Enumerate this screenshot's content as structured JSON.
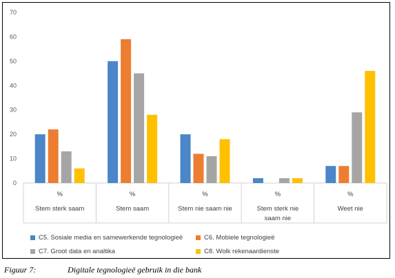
{
  "chart_data": {
    "type": "bar",
    "title": "",
    "xlabel": "",
    "ylabel": "",
    "ylim": [
      0,
      70
    ],
    "y_ticks": [
      0,
      10,
      20,
      30,
      40,
      50,
      60,
      70
    ],
    "grid": false,
    "legend_position": "bottom",
    "categories": [
      {
        "unit": "%",
        "label": "Stem sterk saam"
      },
      {
        "unit": "%",
        "label": "Stem saam"
      },
      {
        "unit": "%",
        "label": "Stem nie saam nie"
      },
      {
        "unit": "%",
        "label": "Stem sterk nie saam nie"
      },
      {
        "unit": "%",
        "label": "Weet nie"
      }
    ],
    "series": [
      {
        "name": "C5. Sosiale media en samewerkende tegnologieë",
        "color": "#4a86c8",
        "values": [
          20,
          50,
          20,
          2,
          7
        ]
      },
      {
        "name": "C6. Mobiele tegnologieë",
        "color": "#ed7d31",
        "values": [
          22,
          59,
          12,
          0,
          7
        ]
      },
      {
        "name": "C7. Groot data en analtika",
        "color": "#a5a5a5",
        "values": [
          13,
          45,
          11,
          2,
          29
        ]
      },
      {
        "name": "C8. Wolk rekenaardienste",
        "color": "#ffc000",
        "values": [
          6,
          28,
          18,
          2,
          46
        ]
      }
    ]
  },
  "caption": {
    "label": "Figuur 7:",
    "text": "Digitale tegnologieë gebruik in die bank"
  }
}
